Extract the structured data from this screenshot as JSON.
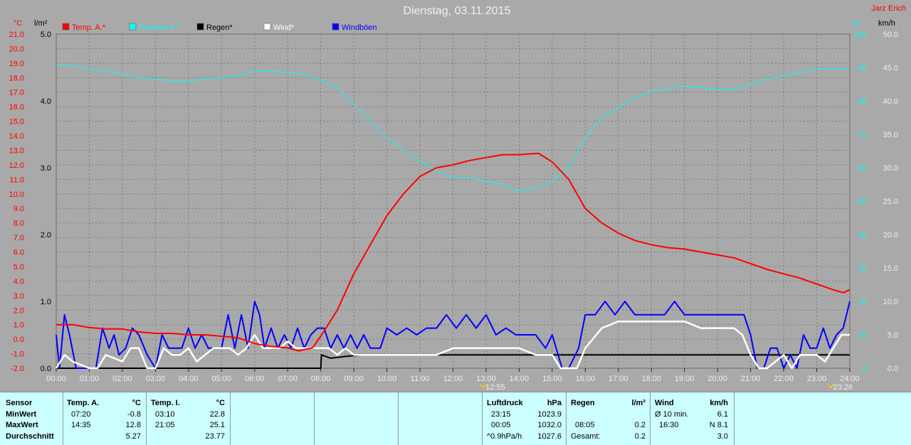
{
  "chart_data": {
    "type": "line",
    "title": "Dienstag, 03.11.2015",
    "author": "Jarz Erich",
    "x_ticks": [
      "00:00",
      "01:00",
      "02:00",
      "03:00",
      "04:00",
      "05:00",
      "06:00",
      "07:00",
      "08:00",
      "09:00",
      "10:00",
      "11:00",
      "12:00",
      "13:00",
      "14:00",
      "15:00",
      "16:00",
      "17:00",
      "18:00",
      "19:00",
      "20:00",
      "21:00",
      "22:00",
      "23:00",
      "24:00"
    ],
    "x_range": [
      0,
      24
    ],
    "markers": [
      {
        "x": 12.92,
        "label": "12:55"
      },
      {
        "x": 23.43,
        "label": "23:26"
      }
    ],
    "axes": {
      "temp": {
        "unit": "°C",
        "range": [
          -2,
          21
        ],
        "ticks": [
          "21.0",
          "20.0",
          "19.0",
          "18.0",
          "17.0",
          "16.0",
          "15.0",
          "14.0",
          "13.0",
          "12.0",
          "11.0",
          "10.0",
          "9.0",
          "8.0",
          "7.0",
          "6.0",
          "5.0",
          "4.0",
          "3.0",
          "2.0",
          "1.0",
          "0.0",
          "-1.0",
          "-2.0"
        ]
      },
      "rain": {
        "unit": "l/m²",
        "range": [
          0,
          5
        ],
        "ticks": [
          "5.0",
          "4.0",
          "3.0",
          "2.0",
          "1.0",
          "0.0"
        ]
      },
      "humidity": {
        "unit": "%",
        "range": [
          0,
          100
        ],
        "ticks": [
          "100",
          "90",
          "80",
          "70",
          "60",
          "50",
          "40",
          "30",
          "20",
          "10",
          "0"
        ]
      },
      "wind": {
        "unit": "km/h",
        "range": [
          0,
          50
        ],
        "ticks": [
          "50.0",
          "45.0",
          "40.0",
          "35.0",
          "30.0",
          "25.0",
          "20.0",
          "15.0",
          "10.0",
          "5.0",
          "0.0"
        ]
      }
    },
    "legend": [
      "Temp. A.*",
      "Feuchte A.*",
      "Regen*",
      "Wind*",
      "Windböen"
    ],
    "series": [
      {
        "name": "Temp. A.*",
        "axis": "temp",
        "color": "#ff0000",
        "x": [
          0,
          0.5,
          1,
          1.5,
          2,
          2.5,
          3,
          3.5,
          4,
          4.5,
          5,
          5.5,
          6,
          6.5,
          7,
          7.33,
          7.75,
          8,
          8.5,
          9,
          9.5,
          10,
          10.5,
          11,
          11.5,
          12,
          12.5,
          13,
          13.5,
          14,
          14.58,
          15,
          15.5,
          16,
          16.5,
          17,
          17.5,
          18,
          18.5,
          19,
          19.5,
          20,
          20.5,
          21,
          21.5,
          22,
          22.5,
          23,
          23.5,
          23.8,
          24
        ],
        "y": [
          1.0,
          1.0,
          0.8,
          0.7,
          0.7,
          0.5,
          0.4,
          0.4,
          0.3,
          0.3,
          0.2,
          0.1,
          -0.3,
          -0.5,
          -0.6,
          -0.8,
          -0.6,
          0.2,
          2.0,
          4.5,
          6.5,
          8.5,
          10.0,
          11.2,
          11.8,
          12.0,
          12.3,
          12.5,
          12.7,
          12.7,
          12.8,
          12.2,
          11.0,
          9.0,
          8.0,
          7.3,
          6.8,
          6.5,
          6.3,
          6.2,
          6.0,
          5.8,
          5.6,
          5.2,
          4.8,
          4.5,
          4.2,
          3.8,
          3.4,
          3.2,
          3.4
        ]
      },
      {
        "name": "Feuchte A.*",
        "axis": "humidity",
        "color": "#00ffff",
        "x": [
          0,
          0.5,
          1,
          1.5,
          2,
          2.5,
          3,
          3.5,
          4,
          4.5,
          5,
          5.5,
          6,
          6.5,
          7,
          7.5,
          8,
          8.5,
          9,
          9.5,
          10,
          10.5,
          11,
          11.5,
          12,
          12.5,
          13,
          13.5,
          14,
          14.5,
          15,
          15.5,
          16,
          16.5,
          17,
          17.5,
          18,
          18.5,
          19,
          19.5,
          20,
          20.5,
          21,
          21.5,
          22,
          22.5,
          23,
          23.5,
          24
        ],
        "y": [
          91,
          90.5,
          89.5,
          89,
          88,
          87,
          86.5,
          86,
          86,
          86.5,
          87,
          87.5,
          89,
          89,
          88.5,
          88,
          86,
          84,
          79,
          74,
          69,
          65,
          62,
          59,
          57,
          57,
          56,
          55,
          53,
          54,
          56,
          60,
          69,
          75,
          78,
          81,
          83,
          83.5,
          84.5,
          84,
          83.5,
          83.5,
          85,
          86.5,
          87.5,
          88.5,
          89.5,
          89.5,
          89.5
        ]
      },
      {
        "name": "Regen*",
        "axis": "rain",
        "color": "#000000",
        "x": [
          0,
          7.9,
          8.0,
          8.02,
          8.3,
          8.8,
          9.3,
          10,
          14,
          16,
          24
        ],
        "y": [
          0,
          0,
          0,
          0.2,
          0.15,
          0.18,
          0.2,
          0.2,
          0.2,
          0.2,
          0.2
        ]
      },
      {
        "name": "Wind*",
        "axis": "wind",
        "color": "#ffffff",
        "x": [
          0,
          0.25,
          0.5,
          1,
          1.25,
          1.5,
          2,
          2.25,
          2.5,
          2.75,
          3,
          3.25,
          3.5,
          3.75,
          4,
          4.25,
          4.5,
          4.75,
          5,
          5.25,
          5.5,
          5.75,
          6,
          6.25,
          6.5,
          6.75,
          7,
          7.25,
          7.5,
          7.75,
          8,
          8.25,
          8.5,
          8.75,
          9,
          9.5,
          10,
          10.5,
          11,
          11.5,
          12,
          12.5,
          13,
          13.5,
          14,
          14.5,
          15,
          15.25,
          15.5,
          15.75,
          16,
          16.5,
          17,
          17.5,
          18,
          18.5,
          19,
          19.5,
          20,
          20.25,
          20.5,
          20.75,
          21,
          21.25,
          21.5,
          21.75,
          22,
          22.25,
          22.5,
          22.75,
          23,
          23.25,
          23.5,
          23.75,
          24
        ],
        "y": [
          0,
          2,
          1,
          0,
          0,
          2,
          1,
          3,
          3,
          0,
          0,
          3,
          2,
          2,
          3,
          1,
          2,
          3,
          3,
          3,
          2,
          3,
          5,
          3,
          3,
          3,
          4,
          3,
          3,
          3,
          3,
          3,
          2,
          3,
          2,
          2,
          2,
          2,
          2,
          2,
          3,
          3,
          3,
          3,
          3,
          2,
          2,
          0,
          0,
          0,
          3,
          6,
          7,
          7,
          7,
          7,
          7,
          6,
          6,
          6,
          6,
          5,
          2,
          0,
          0,
          1,
          2,
          0,
          2,
          2,
          2,
          1,
          3,
          5,
          5
        ]
      },
      {
        "name": "Windböen",
        "axis": "wind",
        "color": "#0000ff",
        "x": [
          0,
          0.1,
          0.25,
          0.4,
          0.6,
          1,
          1.2,
          1.4,
          1.6,
          1.75,
          1.9,
          2.1,
          2.3,
          2.5,
          2.75,
          3.0,
          3.2,
          3.4,
          3.6,
          3.8,
          4.0,
          4.2,
          4.4,
          4.6,
          4.8,
          5.0,
          5.2,
          5.4,
          5.6,
          5.8,
          6.0,
          6.15,
          6.3,
          6.5,
          6.7,
          6.9,
          7.1,
          7.3,
          7.5,
          7.7,
          7.9,
          8.1,
          8.3,
          8.5,
          8.7,
          8.9,
          9.1,
          9.3,
          9.5,
          9.8,
          10,
          10.3,
          10.6,
          10.9,
          11.2,
          11.5,
          11.8,
          12.1,
          12.4,
          12.7,
          13,
          13.3,
          13.6,
          13.9,
          14.2,
          14.5,
          14.8,
          15.0,
          15.3,
          15.5,
          15.8,
          16,
          16.3,
          16.6,
          16.9,
          17.2,
          17.5,
          17.8,
          18.1,
          18.4,
          18.7,
          19,
          19.3,
          19.6,
          19.9,
          20.2,
          20.5,
          20.8,
          21,
          21.2,
          21.4,
          21.6,
          21.8,
          22,
          22.2,
          22.4,
          22.6,
          22.8,
          23,
          23.2,
          23.4,
          23.6,
          23.8,
          24
        ],
        "y": [
          5,
          0,
          8,
          5,
          0,
          0,
          0,
          6,
          3,
          5,
          2,
          3,
          6,
          5,
          2,
          0,
          5,
          3,
          3,
          3,
          6,
          3,
          5,
          3,
          3,
          3,
          8,
          3,
          8,
          3,
          10,
          8,
          3,
          6,
          3,
          5,
          3,
          6,
          3,
          5,
          6,
          6,
          3,
          5,
          3,
          5,
          3,
          5,
          3,
          3,
          6,
          5,
          6,
          5,
          6,
          6,
          8,
          6,
          8,
          6,
          8,
          5,
          6,
          5,
          5,
          5,
          3,
          5,
          0,
          0,
          3,
          8,
          8,
          10,
          8,
          10,
          8,
          8,
          8,
          8,
          10,
          8,
          8,
          8,
          8,
          8,
          8,
          8,
          5,
          0,
          0,
          3,
          3,
          0,
          2,
          0,
          5,
          3,
          3,
          6,
          3,
          5,
          6,
          10
        ]
      }
    ]
  },
  "table": {
    "sensor": {
      "title": "Sensor",
      "rows": [
        "MinWert",
        "MaxWert",
        "Durchschnitt"
      ]
    },
    "temp_a": {
      "title": "Temp. A.",
      "unit": "°C",
      "min_time": "07:20",
      "min": "-0.8",
      "max_time": "14:35",
      "max": "12.8",
      "avg": "5.27"
    },
    "temp_i": {
      "title": "Temp. I.",
      "unit": "°C",
      "min_time": "03:10",
      "min": "22.8",
      "max_time": "21:05",
      "max": "25.1",
      "avg": "23.77"
    },
    "pressure": {
      "title": "Luftdruck",
      "unit": "hPa",
      "min_time": "23:15",
      "min": "1023.9",
      "max_time": "00:05",
      "max": "1032.0",
      "avg_label": "^0.9hPa/h",
      "avg": "1027.6"
    },
    "rain": {
      "title": "Regen",
      "unit": "l/m²",
      "max_time": "08:05",
      "max": "0.2",
      "total_label": "Gesamt:",
      "total": "0.2"
    },
    "wind": {
      "title": "Wind",
      "unit": "km/h",
      "min_label": "Ø 10 min.",
      "min": "6.1",
      "max_time": "16:30",
      "max": "N 8.1",
      "avg": "3.0"
    }
  }
}
